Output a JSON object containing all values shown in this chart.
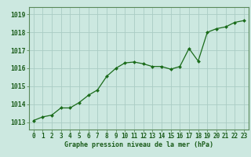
{
  "x": [
    0,
    1,
    2,
    3,
    4,
    5,
    6,
    7,
    8,
    9,
    10,
    11,
    12,
    13,
    14,
    15,
    16,
    17,
    18,
    19,
    20,
    21,
    22,
    23
  ],
  "y": [
    1013.1,
    1013.3,
    1013.4,
    1013.8,
    1013.8,
    1014.1,
    1014.5,
    1014.8,
    1015.55,
    1016.0,
    1016.3,
    1016.35,
    1016.25,
    1016.1,
    1016.1,
    1015.95,
    1016.1,
    1017.1,
    1016.4,
    1018.0,
    1018.2,
    1018.3,
    1018.55,
    1018.65
  ],
  "line_color": "#1a6b1a",
  "marker": "D",
  "marker_size": 2.0,
  "bg_color": "#cce8e0",
  "grid_color": "#aaccc4",
  "xlabel": "Graphe pression niveau de la mer (hPa)",
  "xlabel_color": "#1a5c1a",
  "ylabel_ticks": [
    1013,
    1014,
    1015,
    1016,
    1017,
    1018,
    1019
  ],
  "ylim": [
    1012.6,
    1019.4
  ],
  "xlim": [
    -0.5,
    23.5
  ],
  "xtick_labels": [
    "0",
    "1",
    "2",
    "3",
    "4",
    "5",
    "6",
    "7",
    "8",
    "9",
    "10",
    "11",
    "12",
    "13",
    "14",
    "15",
    "16",
    "17",
    "18",
    "19",
    "20",
    "21",
    "22",
    "23"
  ],
  "tick_color": "#1a5c1a",
  "spine_color": "#5a8a5a",
  "tick_fontsize": 5.5,
  "ytick_fontsize": 5.8,
  "xlabel_fontsize": 6.0
}
